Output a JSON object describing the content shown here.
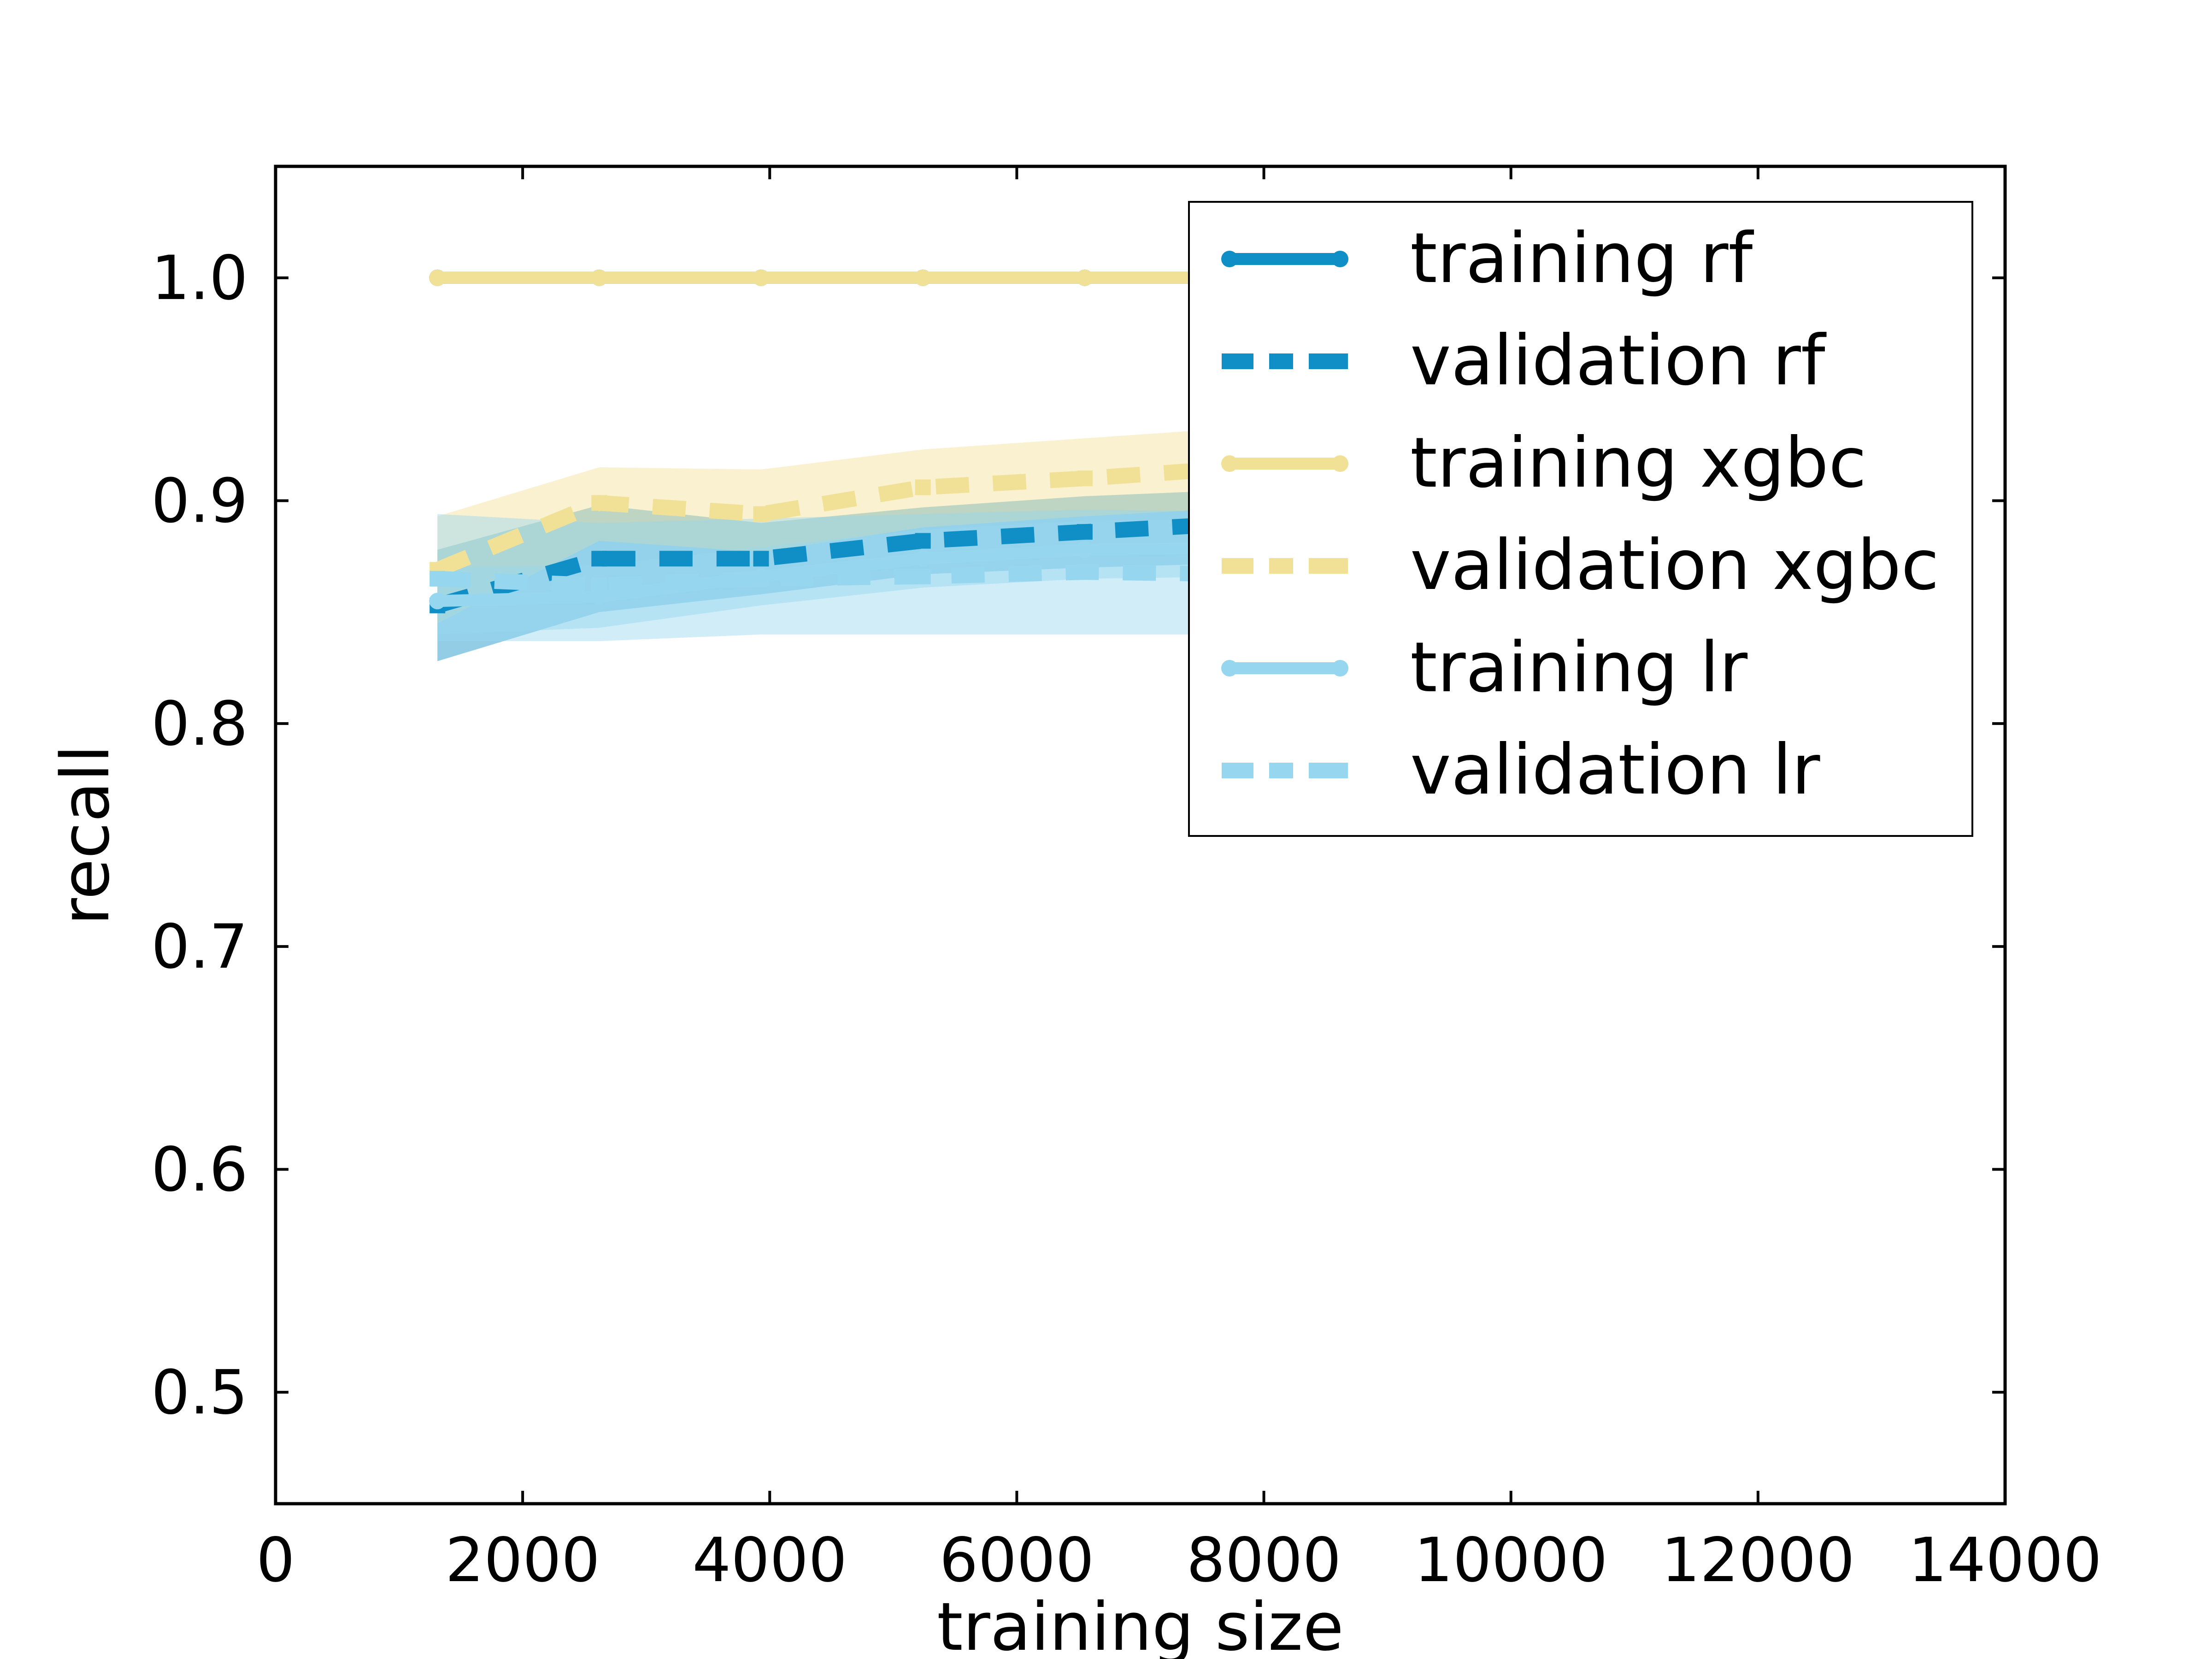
{
  "chart_data": {
    "type": "line",
    "xlabel": "training size",
    "ylabel": "recall",
    "xlim": [
      0,
      14000
    ],
    "ylim": [
      0.45,
      1.05
    ],
    "xticks": [
      0,
      2000,
      4000,
      6000,
      8000,
      10000,
      12000,
      14000
    ],
    "yticks": [
      0.5,
      0.6,
      0.7,
      0.8,
      0.9,
      1.0
    ],
    "xtick_labels": [
      "0",
      "2000",
      "4000",
      "6000",
      "8000",
      "10000",
      "12000",
      "14000"
    ],
    "ytick_labels": [
      "0.5",
      "0.6",
      "0.7",
      "0.8",
      "0.9",
      "1.0"
    ],
    "grid": false,
    "legend_position": "top-right",
    "x": [
      1310,
      2620,
      3930,
      5240,
      6550,
      7860
    ],
    "series": [
      {
        "name": "training rf",
        "color": "#0f8fc5",
        "style": "solid",
        "values": [
          1.0,
          1.0,
          1.0,
          1.0,
          1.0,
          1.0
        ],
        "band_low": [
          1.0,
          1.0,
          1.0,
          1.0,
          1.0,
          1.0
        ],
        "band_high": [
          1.0,
          1.0,
          1.0,
          1.0,
          1.0,
          1.0
        ]
      },
      {
        "name": "validation rf",
        "color": "#0f8fc5",
        "style": "dashed",
        "values": [
          0.853,
          0.874,
          0.874,
          0.882,
          0.886,
          0.89
        ],
        "band_low": [
          0.828,
          0.85,
          0.858,
          0.867,
          0.87,
          0.872
        ],
        "band_high": [
          0.878,
          0.898,
          0.89,
          0.897,
          0.902,
          0.905
        ]
      },
      {
        "name": "training xgbc",
        "color": "#f1e196",
        "style": "solid",
        "values": [
          1.0,
          1.0,
          1.0,
          1.0,
          1.0,
          1.0
        ],
        "band_low": [
          1.0,
          1.0,
          1.0,
          1.0,
          1.0,
          1.0
        ],
        "band_high": [
          1.0,
          1.0,
          1.0,
          1.0,
          1.0,
          1.0
        ]
      },
      {
        "name": "validation xgbc",
        "color": "#f1e196",
        "style": "dashed",
        "values": [
          0.869,
          0.899,
          0.894,
          0.906,
          0.91,
          0.915
        ],
        "band_low": [
          0.845,
          0.882,
          0.877,
          0.888,
          0.893,
          0.897
        ],
        "band_high": [
          0.893,
          0.915,
          0.914,
          0.923,
          0.928,
          0.933
        ]
      },
      {
        "name": "training lr",
        "color": "#96d7ef",
        "style": "solid",
        "values": [
          0.855,
          0.857,
          0.866,
          0.874,
          0.878,
          0.879
        ],
        "band_low": [
          0.84,
          0.843,
          0.853,
          0.861,
          0.865,
          0.866
        ],
        "band_high": [
          0.87,
          0.871,
          0.879,
          0.887,
          0.891,
          0.892
        ]
      },
      {
        "name": "validation lr",
        "color": "#96d7ef",
        "style": "dashed",
        "values": [
          0.865,
          0.862,
          0.865,
          0.866,
          0.868,
          0.867
        ],
        "band_low": [
          0.837,
          0.837,
          0.84,
          0.84,
          0.84,
          0.84
        ],
        "band_high": [
          0.894,
          0.89,
          0.892,
          0.894,
          0.896,
          0.895
        ]
      }
    ]
  }
}
